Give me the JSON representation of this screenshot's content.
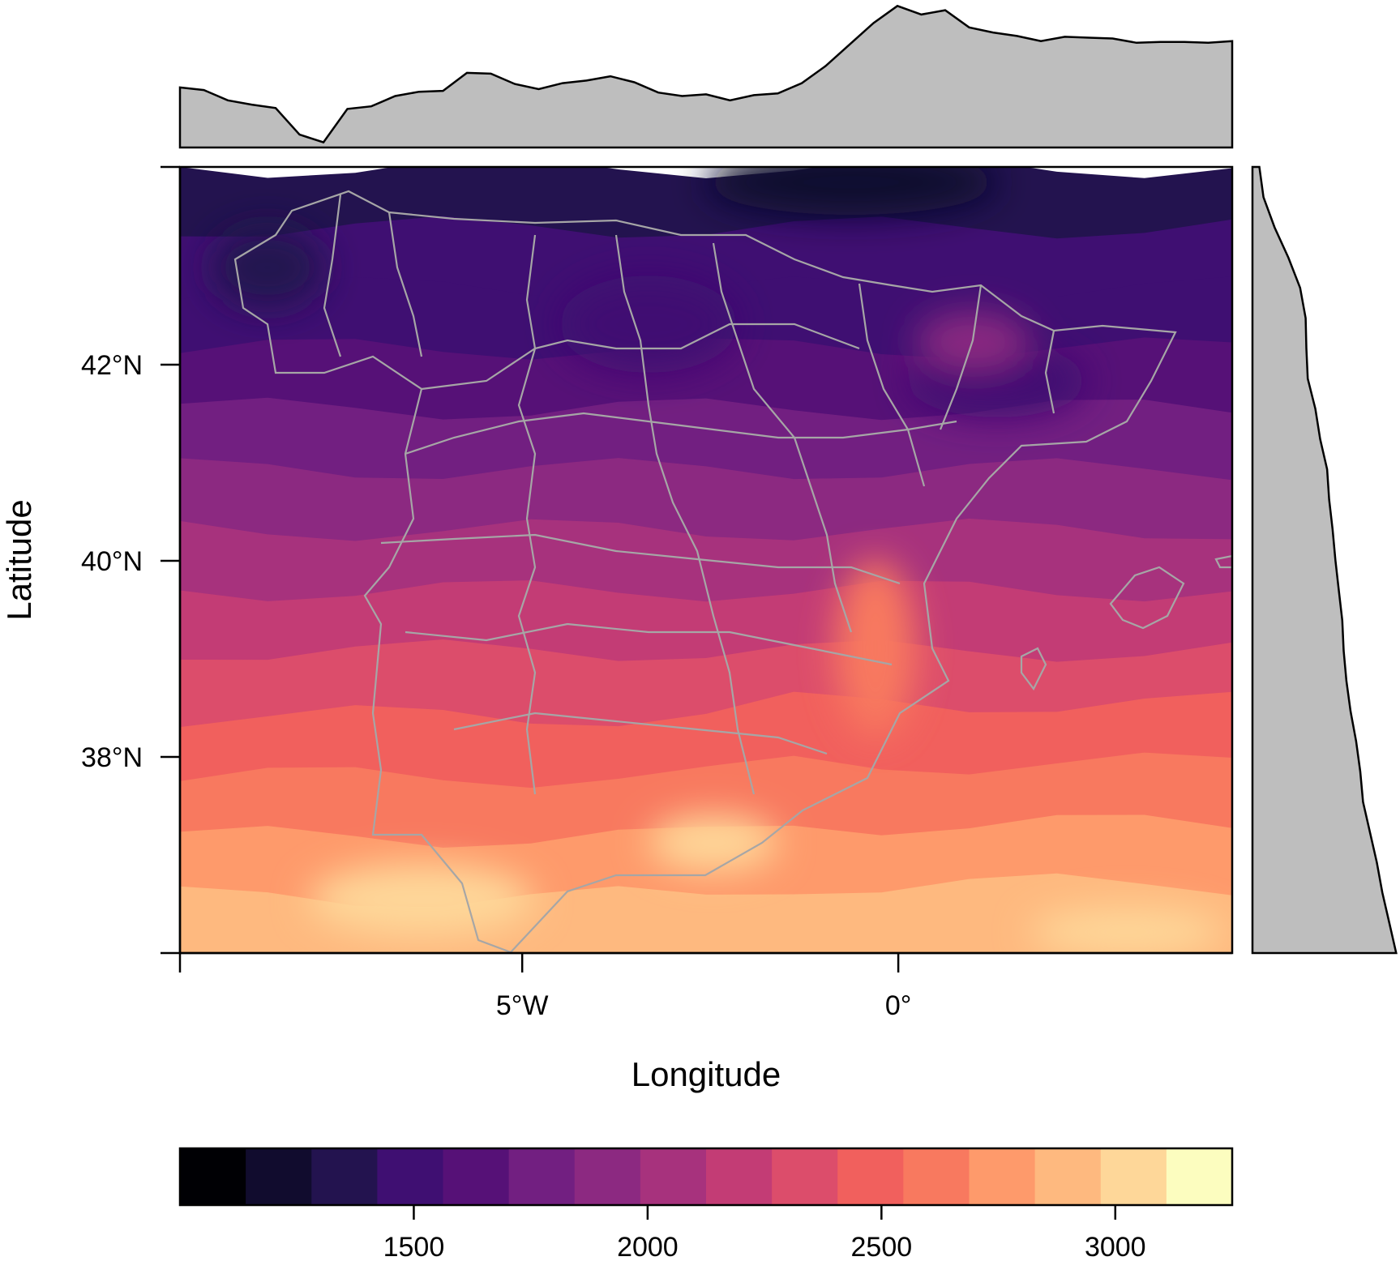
{
  "chart_data": {
    "type": "heatmap",
    "xlabel": "Longitude",
    "ylabel": "Latitude",
    "x_ticks": [
      {
        "value": -5,
        "label": "5°W"
      },
      {
        "value": 0,
        "label": "0°"
      }
    ],
    "y_ticks": [
      {
        "value": 42,
        "label": "42°N"
      },
      {
        "value": 40,
        "label": "40°N"
      },
      {
        "value": 38,
        "label": "38°N"
      }
    ],
    "colorbar": {
      "range": [
        1000,
        3250
      ],
      "ticks": [
        {
          "value": 1500,
          "label": "1500"
        },
        {
          "value": 2000,
          "label": "2000"
        },
        {
          "value": 2500,
          "label": "2500"
        },
        {
          "value": 3000,
          "label": "3000"
        }
      ],
      "colors": [
        "#000004",
        "#110c2e",
        "#23134f",
        "#3f0f72",
        "#561177",
        "#721f81",
        "#8c2981",
        "#a7327d",
        "#c33c75",
        "#dc4d6b",
        "#f1605d",
        "#f8795f",
        "#fe9a6b",
        "#feb97f",
        "#fed799",
        "#fcfdbf"
      ]
    },
    "lon_profile_top": [
      1800,
      1770,
      1650,
      1600,
      1560,
      1250,
      1160,
      1550,
      1580,
      1700,
      1750,
      1760,
      1970,
      1960,
      1840,
      1780,
      1850,
      1880,
      1930,
      1860,
      1740,
      1700,
      1720,
      1650,
      1710,
      1730,
      1850,
      2050,
      2300,
      2550,
      2750,
      2650,
      2700,
      2500,
      2440,
      2400,
      2340,
      2390,
      2380,
      2370,
      2320,
      2330,
      2330,
      2320,
      2340
    ],
    "lat_profile_right": [
      1200,
      1260,
      1420,
      1620,
      1790,
      1870,
      1880,
      1900,
      2010,
      2080,
      2180,
      2210,
      2260,
      2300,
      2350,
      2400,
      2420,
      2460,
      2520,
      2600,
      2660,
      2700,
      2800,
      2900,
      2980,
      3080,
      3180
    ]
  }
}
